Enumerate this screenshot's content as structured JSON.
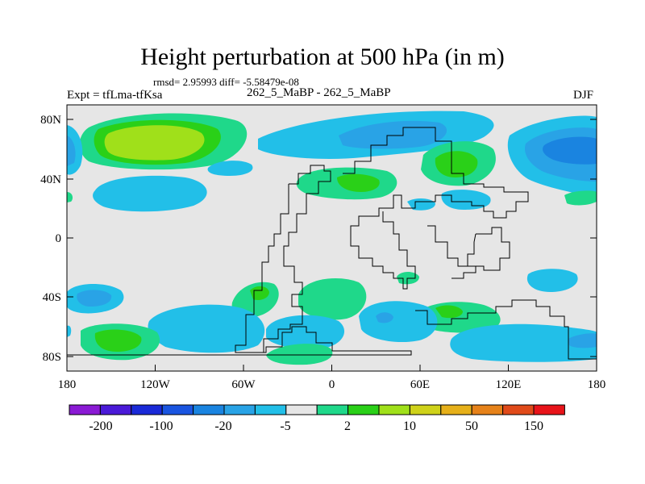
{
  "title": "Height perturbation at 500 hPa (in m)",
  "stats": "rmsd= 2.95993 diff= -5.58479e-08",
  "expt_label": "Expt = tfLma-tfKsa",
  "cases_label": "262_5_MaBP - 262_5_MaBP",
  "season": "DJF",
  "lat_ticks": [
    "80N",
    "40N",
    "0",
    "40S",
    "80S"
  ],
  "lon_ticks": [
    "180",
    "120W",
    "60W",
    "0",
    "60E",
    "120E",
    "180"
  ],
  "colorbar": {
    "colors": [
      "#8a1ad4",
      "#4a1ad8",
      "#1a2ad8",
      "#1a55e0",
      "#1a84e0",
      "#29a3e6",
      "#22bfe8",
      "#e6e6e6",
      "#1fd88a",
      "#2ad018",
      "#a0e01a",
      "#cfd21a",
      "#e6b01a",
      "#e6821a",
      "#e04a1a",
      "#e8141a"
    ],
    "labels": [
      "-200",
      "-100",
      "-20",
      "-5",
      "2",
      "10",
      "50",
      "150"
    ]
  },
  "chart_data": {
    "type": "filled-contour-map",
    "variable": "Height perturbation at 500 hPa",
    "units": "m",
    "lon_range": [
      -180,
      180
    ],
    "lat_range": [
      -90,
      90
    ],
    "levels": [
      -200,
      -100,
      -20,
      -5,
      2,
      10,
      50,
      150
    ]
  }
}
